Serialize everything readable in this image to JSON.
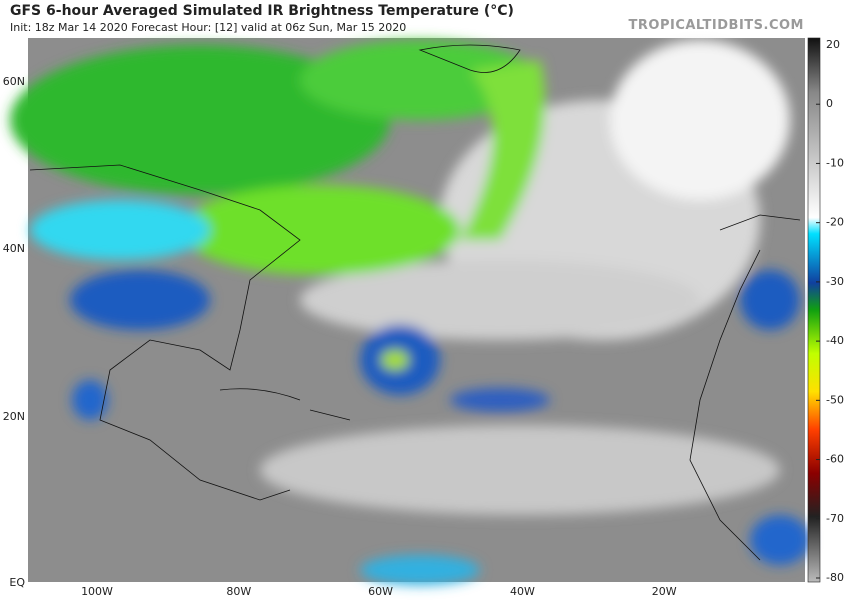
{
  "header": {
    "title": "GFS 6-hour Averaged Simulated IR Brightness Temperature (°C)",
    "subtitle": "Init: 18z Mar 14 2020   Forecast Hour: [12]   valid at 06z Sun, Mar 15 2020",
    "watermark": "TROPICALTIDBITS.COM"
  },
  "map": {
    "lat_labels": [
      "60N",
      "40N",
      "20N",
      "EQ"
    ],
    "lon_labels": [
      "100W",
      "80W",
      "60W",
      "40W",
      "20W"
    ]
  },
  "colorbar": {
    "ticks": [
      20,
      0,
      -10,
      -20,
      -30,
      -40,
      -50,
      -60,
      -70,
      -80
    ]
  }
}
